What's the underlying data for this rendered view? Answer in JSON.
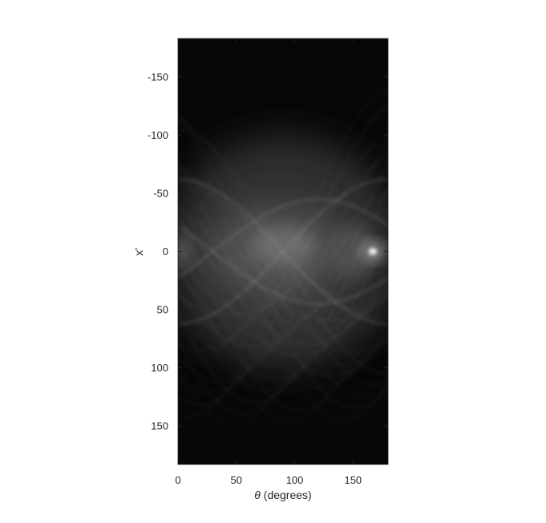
{
  "chart_data": {
    "type": "heatmap",
    "title": "",
    "xlabel": {
      "symbol": "θ",
      "text": " (degrees)"
    },
    "ylabel": "x'",
    "xlim": [
      0,
      180
    ],
    "ylim": [
      -183,
      183
    ],
    "y_direction": "reversed",
    "colormap": "gray",
    "grid": false,
    "x_ticks": [
      0,
      50,
      100,
      150
    ],
    "y_ticks": [
      -150,
      -100,
      -50,
      0,
      50,
      100,
      150
    ],
    "x_tick_labels": [
      "0",
      "50",
      "100",
      "150"
    ],
    "y_tick_labels": [
      "-150",
      "-100",
      "-50",
      "0",
      "50",
      "100",
      "150"
    ],
    "description_values": {
      "max_intensity_theta": 167,
      "max_intensity_xprime": 0
    },
    "colors": {
      "background": "#070707",
      "axis": "#262626"
    }
  }
}
